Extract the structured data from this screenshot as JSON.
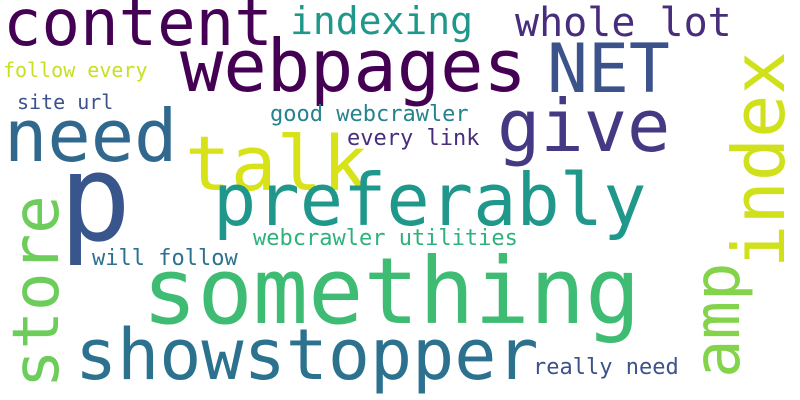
{
  "words": {
    "content": {
      "text": "content",
      "color": "#440154"
    },
    "webpages": {
      "text": "webpages",
      "color": "#440154"
    },
    "indexing": {
      "text": "indexing",
      "color": "#1f988b"
    },
    "whole_lot": {
      "text": "whole lot",
      "color": "#472d7b"
    },
    "net": {
      "text": "NET",
      "color": "#3b528b"
    },
    "index": {
      "text": "index",
      "color": "#d0e11c"
    },
    "follow_every": {
      "text": "follow every",
      "color": "#c8e020"
    },
    "need": {
      "text": "need",
      "color": "#31688e"
    },
    "give": {
      "text": "give",
      "color": "#443983"
    },
    "site_url": {
      "text": "site url",
      "color": "#3b528b"
    },
    "talk": {
      "text": "talk",
      "color": "#d8e219"
    },
    "good_webcrawler": {
      "text": "good webcrawler",
      "color": "#26828e"
    },
    "every_link": {
      "text": "every link",
      "color": "#472d7b"
    },
    "p": {
      "text": "p",
      "color": "#39568c"
    },
    "preferably": {
      "text": "preferably",
      "color": "#1f988b"
    },
    "store": {
      "text": "store",
      "color": "#6ccd5a"
    },
    "webcrawler_utilities": {
      "text": "webcrawler utilities",
      "color": "#2db27d"
    },
    "will_follow": {
      "text": "will follow",
      "color": "#2c728e"
    },
    "amp": {
      "text": "amp",
      "color": "#84d44b"
    },
    "something": {
      "text": "something",
      "color": "#3fbc73"
    },
    "showstopper": {
      "text": "showstopper",
      "color": "#2c728e"
    },
    "really_need": {
      "text": "really need",
      "color": "#3b528b"
    }
  }
}
